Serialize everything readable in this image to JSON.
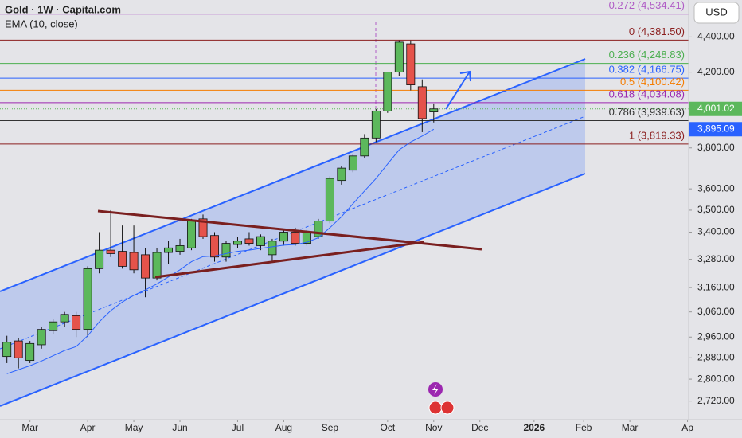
{
  "chart_data": {
    "type": "candlestick",
    "title": "Gold · 1W · Capital.com",
    "currency": "USD",
    "log_scale": true,
    "x": [
      0,
      1,
      2,
      3,
      4,
      5,
      6,
      7,
      8,
      9,
      10,
      11,
      12,
      13,
      14,
      15,
      16,
      17,
      18,
      19,
      20,
      21,
      22,
      23,
      24,
      25,
      26,
      27,
      28,
      29,
      30,
      31,
      32,
      33,
      34,
      35,
      36,
      37
    ],
    "open": [
      2885,
      2945,
      2870,
      2930,
      2985,
      3020,
      3045,
      2990,
      3240,
      3320,
      3315,
      3310,
      3300,
      3200,
      3310,
      3315,
      3330,
      3460,
      3385,
      3290,
      3345,
      3370,
      3340,
      3300,
      3360,
      3400,
      3350,
      3380,
      3450,
      3640,
      3690,
      3760,
      3850,
      3990,
      4200,
      4360,
      4120,
      3985
    ],
    "high": [
      2965,
      2955,
      2945,
      3000,
      3030,
      3060,
      3060,
      3250,
      3400,
      3500,
      3430,
      3430,
      3330,
      3330,
      3360,
      3370,
      3460,
      3480,
      3400,
      3360,
      3380,
      3400,
      3390,
      3370,
      3410,
      3420,
      3410,
      3460,
      3660,
      3710,
      3770,
      3870,
      4000,
      4200,
      4380,
      4380,
      4160,
      4030
    ],
    "low": [
      2860,
      2840,
      2860,
      2915,
      2970,
      3000,
      2960,
      2960,
      3220,
      3290,
      3240,
      3220,
      3120,
      3190,
      3260,
      3300,
      3320,
      3370,
      3270,
      3270,
      3330,
      3340,
      3320,
      3270,
      3340,
      3340,
      3340,
      3370,
      3440,
      3620,
      3680,
      3750,
      3830,
      3980,
      4180,
      4100,
      3880,
      3930
    ],
    "close": [
      2940,
      2880,
      2935,
      2990,
      3020,
      3050,
      2990,
      3240,
      3320,
      3305,
      3250,
      3235,
      3200,
      3310,
      3330,
      3340,
      3450,
      3380,
      3290,
      3350,
      3360,
      3350,
      3380,
      3360,
      3400,
      3350,
      3400,
      3450,
      3650,
      3700,
      3760,
      3850,
      3990,
      4200,
      4370,
      4130,
      3950,
      4001.02
    ],
    "last_close_label": "4,001.02",
    "up_color": "#5cb85c",
    "down_color": "#e5534b",
    "series": [
      {
        "name": "EMA (10, close)",
        "color": "#2962ff",
        "values": [
          2820,
          2835,
          2850,
          2868,
          2888,
          2908,
          2923,
          2965,
          3020,
          3065,
          3100,
          3128,
          3150,
          3175,
          3205,
          3235,
          3270,
          3292,
          3295,
          3305,
          3315,
          3320,
          3328,
          3335,
          3342,
          3345,
          3355,
          3375,
          3420,
          3470,
          3530,
          3590,
          3650,
          3720,
          3790,
          3830,
          3860,
          3895.09
        ],
        "last_label": "3,895.09"
      }
    ],
    "fib_levels": [
      {
        "value": 4534.41,
        "label": "-0.272 (4,534.41)",
        "color": "#b05cc6"
      },
      {
        "value": 4381.5,
        "label": "0 (4,381.50)",
        "color": "#8b1e1e"
      },
      {
        "value": 4248.83,
        "label": "0.236 (4,248.83)",
        "color": "#4caf50"
      },
      {
        "value": 4166.75,
        "label": "0.382 (4,166.75)",
        "color": "#2962ff"
      },
      {
        "value": 4100.42,
        "label": "0.5 (4,100.42)",
        "color": "#f57c00"
      },
      {
        "value": 4034.08,
        "label": "0.618 (4,034.08)",
        "color": "#9c27b0"
      },
      {
        "value": 3939.63,
        "label": "0.786 (3,939.63)",
        "color": "#333333"
      },
      {
        "value": 3819.33,
        "label": "1 (3,819.33)",
        "color": "#8b1e1e"
      }
    ],
    "xlim": [
      -0.6,
      59.1
    ],
    "xticks": [
      {
        "value": 2,
        "label": "Mar"
      },
      {
        "value": 7,
        "label": "Apr"
      },
      {
        "value": 11,
        "label": "May"
      },
      {
        "value": 15,
        "label": "Jun"
      },
      {
        "value": 20,
        "label": "Jul"
      },
      {
        "value": 24,
        "label": "Aug"
      },
      {
        "value": 28,
        "label": "Sep"
      },
      {
        "value": 33,
        "label": "Oct"
      },
      {
        "value": 37,
        "label": "Nov"
      },
      {
        "value": 41,
        "label": "Dec"
      },
      {
        "value": 45.7,
        "label": "2026"
      },
      {
        "value": 50,
        "label": "Feb"
      },
      {
        "value": 54,
        "label": "Mar"
      },
      {
        "value": 59,
        "label": "Ap"
      }
    ],
    "ylim": [
      2654,
      4620
    ],
    "yticks": [
      {
        "value": 4400,
        "label": "4,400.00"
      },
      {
        "value": 4200,
        "label": "4,200.00"
      },
      {
        "value": 3800,
        "label": "3,800.00"
      },
      {
        "value": 3600,
        "label": "3,600.00"
      },
      {
        "value": 3500,
        "label": "3,500.00"
      },
      {
        "value": 3400,
        "label": "3,400.00"
      },
      {
        "value": 3280,
        "label": "3,280.00"
      },
      {
        "value": 3160,
        "label": "3,160.00"
      },
      {
        "value": 3060,
        "label": "3,060.00"
      },
      {
        "value": 2960,
        "label": "2,960.00"
      },
      {
        "value": 2880,
        "label": "2,880.00"
      },
      {
        "value": 2800,
        "label": "2,800.00"
      },
      {
        "value": 2720,
        "label": "2,720.00"
      }
    ]
  }
}
